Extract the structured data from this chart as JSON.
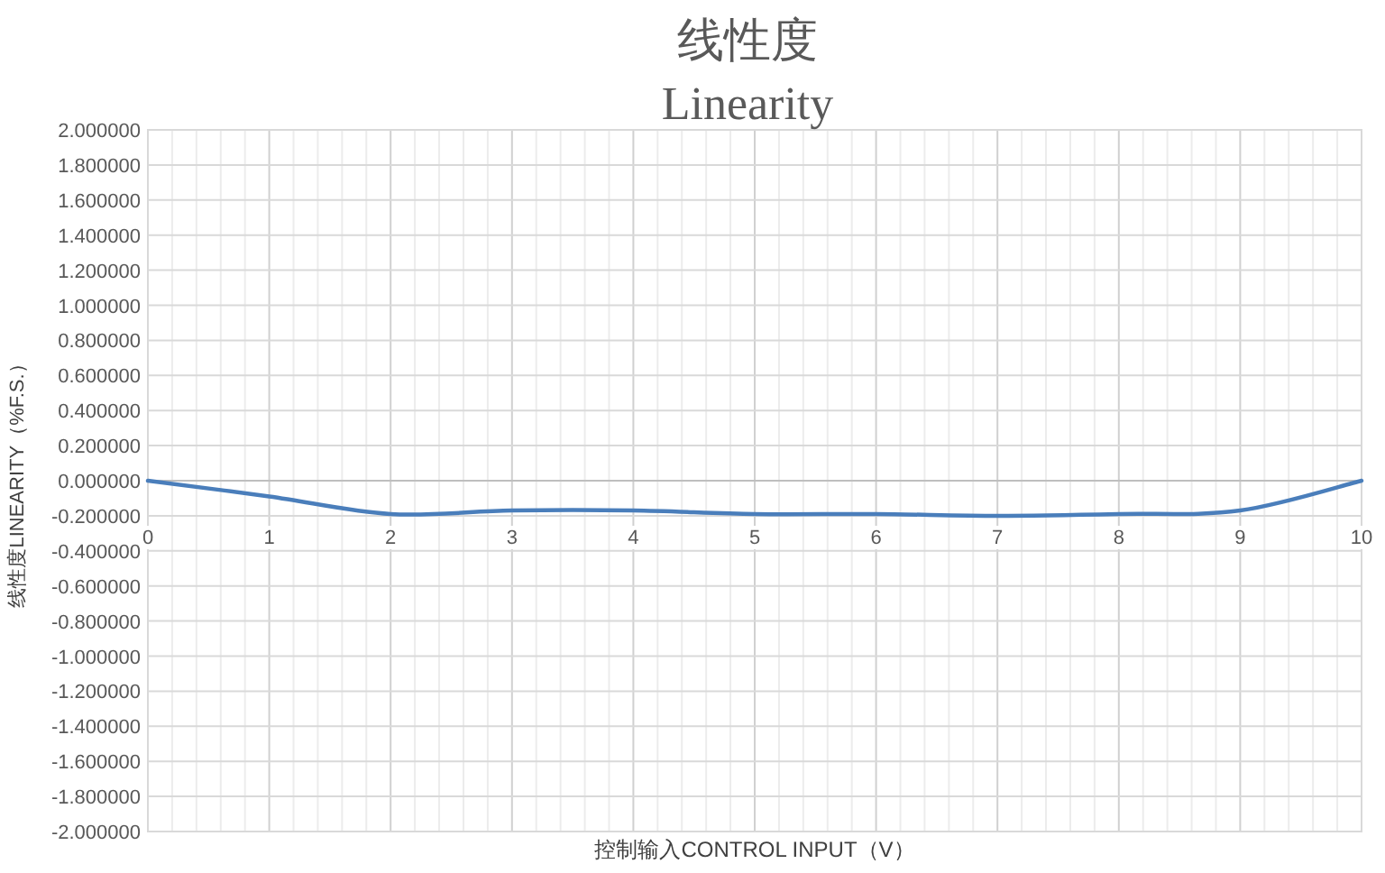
{
  "chart_data": {
    "type": "line",
    "title": "线性度",
    "subtitle": "Linearity",
    "xlabel": "控制输入CONTROL INPUT（V）",
    "ylabel": "线性度LINEARITY（%F.S.）",
    "x": [
      0,
      1,
      2,
      3,
      4,
      5,
      6,
      7,
      8,
      9,
      10
    ],
    "series": [
      {
        "color": "#4a7ebb",
        "values": [
          0,
          -0.09,
          -0.19,
          -0.17,
          -0.17,
          -0.19,
          -0.19,
          -0.2,
          -0.19,
          -0.17,
          0
        ]
      }
    ],
    "xlim": [
      0,
      10
    ],
    "xticks": [
      0,
      1,
      2,
      3,
      4,
      5,
      6,
      7,
      8,
      9,
      10
    ],
    "ylim": [
      -2,
      2
    ],
    "yticks": [
      {
        "value": -2,
        "label": "-2.000000"
      },
      {
        "value": -1.8,
        "label": "-1.800000"
      },
      {
        "value": -1.6,
        "label": "-1.600000"
      },
      {
        "value": -1.4,
        "label": "-1.400000"
      },
      {
        "value": -1.2,
        "label": "-1.200000"
      },
      {
        "value": -1,
        "label": "-1.000000"
      },
      {
        "value": -0.8,
        "label": "-0.800000"
      },
      {
        "value": -0.6,
        "label": "-0.600000"
      },
      {
        "value": -0.4,
        "label": "-0.400000"
      },
      {
        "value": -0.2,
        "label": "-0.200000"
      },
      {
        "value": 0,
        "label": "0.000000"
      },
      {
        "value": 0.2,
        "label": "0.200000"
      },
      {
        "value": 0.4,
        "label": "0.400000"
      },
      {
        "value": 0.6,
        "label": "0.600000"
      },
      {
        "value": 0.8,
        "label": "0.800000"
      },
      {
        "value": 1,
        "label": "1.000000"
      },
      {
        "value": 1.2,
        "label": "1.200000"
      },
      {
        "value": 1.4,
        "label": "1.400000"
      },
      {
        "value": 1.6,
        "label": "1.600000"
      },
      {
        "value": 1.8,
        "label": "1.800000"
      },
      {
        "value": 2,
        "label": "2.000000"
      }
    ],
    "grid": true,
    "marker": "none",
    "line_style": "solid"
  }
}
